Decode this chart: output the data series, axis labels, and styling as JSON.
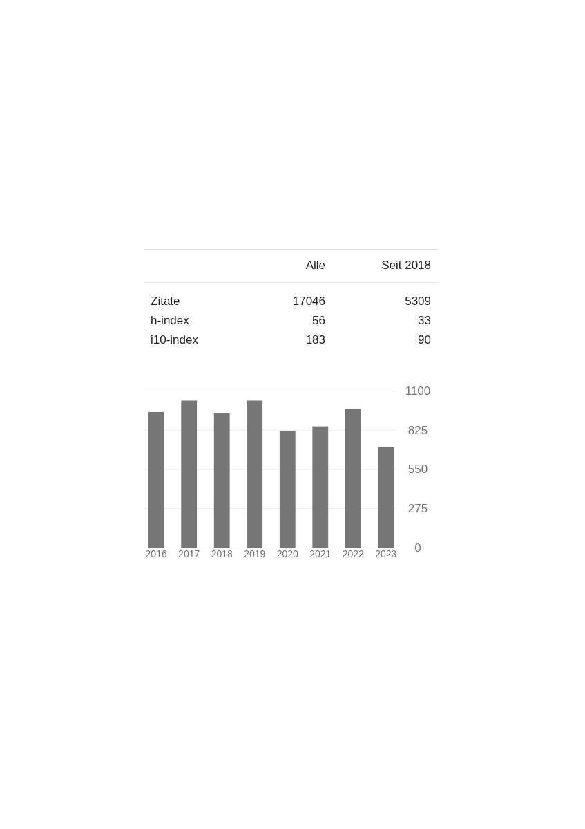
{
  "chart_data": [
    {
      "type": "other",
      "annotations": [
        "Alle",
        "Seit 2018",
        "Zitate",
        "17046",
        "5309",
        "h-index",
        "56",
        "33",
        "i10-index",
        "183",
        "90"
      ]
    },
    {
      "type": "bar",
      "categories": [
        "2016",
        "2017",
        "2018",
        "2019",
        "2020",
        "2021",
        "2022",
        "2023"
      ],
      "values": [
        950,
        1030,
        940,
        1030,
        815,
        850,
        970,
        705
      ],
      "color": "#777777",
      "ylim": [
        0,
        1100
      ],
      "yticks": [
        0,
        275,
        550,
        825,
        1100
      ],
      "grid": "y"
    }
  ]
}
